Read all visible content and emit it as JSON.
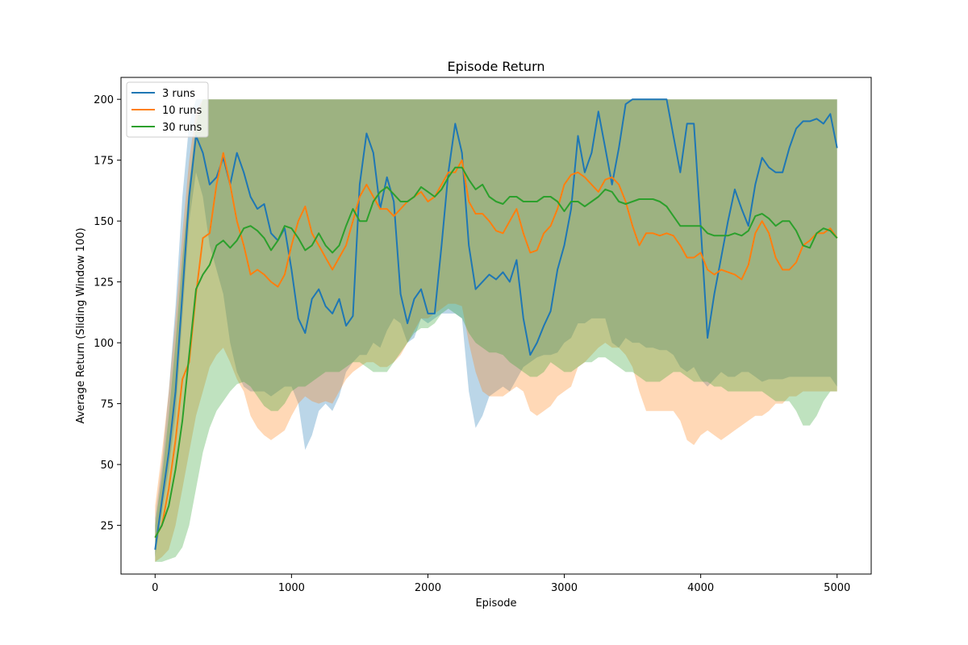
{
  "chart_data": {
    "type": "line",
    "title": "Episode Return",
    "xlabel": "Episode",
    "ylabel": "Average Return (Sliding Window 100)",
    "xlim": [
      -250,
      5250
    ],
    "ylim": [
      5,
      209
    ],
    "xticks": [
      0,
      1000,
      2000,
      3000,
      4000,
      5000
    ],
    "yticks": [
      25,
      50,
      75,
      100,
      125,
      150,
      175,
      200
    ],
    "legend_position": "top-left",
    "grid": false,
    "series": [
      {
        "name": "3 runs",
        "color": "#1f77b4",
        "x": [
          0,
          50,
          100,
          150,
          200,
          250,
          300,
          350,
          400,
          450,
          500,
          550,
          600,
          650,
          700,
          750,
          800,
          850,
          900,
          950,
          1000,
          1050,
          1100,
          1150,
          1200,
          1250,
          1300,
          1350,
          1400,
          1450,
          1500,
          1550,
          1600,
          1650,
          1700,
          1750,
          1800,
          1850,
          1900,
          1950,
          2000,
          2050,
          2100,
          2150,
          2200,
          2250,
          2300,
          2350,
          2400,
          2450,
          2500,
          2550,
          2600,
          2650,
          2700,
          2750,
          2800,
          2850,
          2900,
          2950,
          3000,
          3050,
          3100,
          3150,
          3200,
          3250,
          3300,
          3350,
          3400,
          3450,
          3500,
          3550,
          3600,
          3650,
          3700,
          3750,
          3800,
          3850,
          3900,
          3950,
          4000,
          4050,
          4100,
          4150,
          4200,
          4250,
          4300,
          4350,
          4400,
          4450,
          4500,
          4550,
          4600,
          4650,
          4700,
          4750,
          4800,
          4850,
          4900,
          4950,
          5000
        ],
        "y": [
          15,
          35,
          55,
          80,
          120,
          160,
          185,
          178,
          165,
          168,
          176,
          165,
          178,
          170,
          160,
          155,
          157,
          145,
          142,
          147,
          130,
          110,
          104,
          118,
          122,
          115,
          112,
          118,
          107,
          111,
          165,
          186,
          178,
          155,
          168,
          158,
          120,
          108,
          118,
          122,
          112,
          112,
          140,
          170,
          190,
          178,
          140,
          122,
          125,
          128,
          126,
          129,
          125,
          134,
          110,
          95,
          100,
          107,
          113,
          130,
          140,
          155,
          185,
          170,
          178,
          195,
          180,
          165,
          180,
          198,
          200,
          200,
          200,
          200,
          200,
          200,
          185,
          170,
          190,
          190,
          148,
          102,
          120,
          135,
          150,
          163,
          155,
          148,
          165,
          176,
          172,
          170,
          170,
          180,
          188,
          191,
          191,
          192,
          190,
          194,
          180
        ],
        "lower": [
          12,
          30,
          48,
          70,
          110,
          150,
          170,
          160,
          140,
          130,
          120,
          100,
          88,
          82,
          80,
          80,
          80,
          78,
          80,
          82,
          82,
          75,
          56,
          62,
          72,
          75,
          72,
          78,
          88,
          92,
          95,
          95,
          100,
          98,
          105,
          110,
          108,
          100,
          102,
          110,
          108,
          110,
          112,
          112,
          112,
          110,
          80,
          65,
          70,
          78,
          80,
          82,
          80,
          85,
          90,
          92,
          94,
          95,
          95,
          96,
          100,
          102,
          108,
          108,
          110,
          110,
          110,
          100,
          98,
          102,
          100,
          100,
          98,
          98,
          97,
          97,
          95,
          90,
          88,
          90,
          85,
          82,
          85,
          88,
          86,
          86,
          88,
          88,
          86,
          84,
          85,
          85,
          85,
          86,
          86,
          86,
          86,
          86,
          86,
          86,
          82
        ],
        "upper": [
          28,
          50,
          80,
          115,
          160,
          190,
          200,
          200,
          200,
          200,
          200,
          200,
          200,
          200,
          200,
          200,
          200,
          200,
          200,
          200,
          200,
          200,
          200,
          200,
          200,
          200,
          200,
          200,
          200,
          200,
          200,
          200,
          200,
          200,
          200,
          200,
          200,
          200,
          200,
          200,
          200,
          200,
          200,
          200,
          200,
          200,
          200,
          200,
          200,
          200,
          200,
          200,
          200,
          200,
          200,
          200,
          200,
          200,
          200,
          200,
          200,
          200,
          200,
          200,
          200,
          200,
          200,
          200,
          200,
          200,
          200,
          200,
          200,
          200,
          200,
          200,
          200,
          200,
          200,
          200,
          200,
          200,
          200,
          200,
          200,
          200,
          200,
          200,
          200,
          200,
          200,
          200,
          200,
          200,
          200,
          200,
          200,
          200,
          200,
          200,
          200
        ]
      },
      {
        "name": "10 runs",
        "color": "#ff7f0e",
        "x": [
          0,
          50,
          100,
          150,
          200,
          250,
          300,
          350,
          400,
          450,
          500,
          550,
          600,
          650,
          700,
          750,
          800,
          850,
          900,
          950,
          1000,
          1050,
          1100,
          1150,
          1200,
          1250,
          1300,
          1350,
          1400,
          1450,
          1500,
          1550,
          1600,
          1650,
          1700,
          1750,
          1800,
          1850,
          1900,
          1950,
          2000,
          2050,
          2100,
          2150,
          2200,
          2250,
          2300,
          2350,
          2400,
          2450,
          2500,
          2550,
          2600,
          2650,
          2700,
          2750,
          2800,
          2850,
          2900,
          2950,
          3000,
          3050,
          3100,
          3150,
          3200,
          3250,
          3300,
          3350,
          3400,
          3450,
          3500,
          3550,
          3600,
          3650,
          3700,
          3750,
          3800,
          3850,
          3900,
          3950,
          4000,
          4050,
          4100,
          4150,
          4200,
          4250,
          4300,
          4350,
          4400,
          4450,
          4500,
          4550,
          4600,
          4650,
          4700,
          4750,
          4800,
          4850,
          4900,
          4950,
          5000
        ],
        "y": [
          20,
          25,
          40,
          60,
          85,
          92,
          120,
          143,
          145,
          165,
          178,
          165,
          150,
          140,
          128,
          130,
          128,
          125,
          123,
          128,
          140,
          150,
          156,
          145,
          140,
          135,
          130,
          135,
          140,
          150,
          160,
          165,
          160,
          155,
          155,
          152,
          155,
          158,
          160,
          162,
          158,
          160,
          165,
          170,
          170,
          175,
          158,
          153,
          153,
          150,
          146,
          145,
          150,
          155,
          145,
          137,
          138,
          145,
          148,
          155,
          165,
          169,
          170,
          168,
          165,
          162,
          167,
          168,
          165,
          158,
          148,
          140,
          145,
          145,
          144,
          145,
          144,
          140,
          135,
          135,
          137,
          130,
          128,
          130,
          129,
          128,
          126,
          132,
          145,
          150,
          145,
          135,
          130,
          130,
          133,
          140,
          142,
          145,
          145,
          147,
          143
        ],
        "lower": [
          10,
          12,
          15,
          25,
          40,
          55,
          70,
          80,
          90,
          95,
          98,
          92,
          85,
          80,
          70,
          65,
          62,
          60,
          62,
          64,
          70,
          75,
          78,
          76,
          75,
          76,
          75,
          80,
          85,
          88,
          90,
          92,
          92,
          90,
          90,
          92,
          95,
          100,
          105,
          110,
          110,
          112,
          114,
          116,
          116,
          115,
          100,
          88,
          80,
          78,
          78,
          78,
          80,
          82,
          80,
          72,
          70,
          72,
          74,
          78,
          80,
          82,
          90,
          92,
          95,
          98,
          100,
          98,
          98,
          95,
          90,
          80,
          72,
          72,
          72,
          72,
          72,
          68,
          60,
          58,
          62,
          64,
          62,
          60,
          62,
          64,
          66,
          68,
          70,
          70,
          72,
          75,
          75,
          78,
          78,
          80,
          80,
          80,
          80,
          80,
          80
        ],
        "upper": [
          33,
          55,
          80,
          110,
          145,
          175,
          195,
          200,
          200,
          200,
          200,
          200,
          200,
          200,
          200,
          200,
          200,
          200,
          200,
          200,
          200,
          200,
          200,
          200,
          200,
          200,
          200,
          200,
          200,
          200,
          200,
          200,
          200,
          200,
          200,
          200,
          200,
          200,
          200,
          200,
          200,
          200,
          200,
          200,
          200,
          200,
          200,
          200,
          200,
          200,
          200,
          200,
          200,
          200,
          200,
          200,
          200,
          200,
          200,
          200,
          200,
          200,
          200,
          200,
          200,
          200,
          200,
          200,
          200,
          200,
          200,
          200,
          200,
          200,
          200,
          200,
          200,
          200,
          200,
          200,
          200,
          200,
          200,
          200,
          200,
          200,
          200,
          200,
          200,
          200,
          200,
          200,
          200,
          200,
          200,
          200,
          200,
          200,
          200,
          200,
          200
        ]
      },
      {
        "name": "30 runs",
        "color": "#2ca02c",
        "x": [
          0,
          50,
          100,
          150,
          200,
          250,
          300,
          350,
          400,
          450,
          500,
          550,
          600,
          650,
          700,
          750,
          800,
          850,
          900,
          950,
          1000,
          1050,
          1100,
          1150,
          1200,
          1250,
          1300,
          1350,
          1400,
          1450,
          1500,
          1550,
          1600,
          1650,
          1700,
          1750,
          1800,
          1850,
          1900,
          1950,
          2000,
          2050,
          2100,
          2150,
          2200,
          2250,
          2300,
          2350,
          2400,
          2450,
          2500,
          2550,
          2600,
          2650,
          2700,
          2750,
          2800,
          2850,
          2900,
          2950,
          3000,
          3050,
          3100,
          3150,
          3200,
          3250,
          3300,
          3350,
          3400,
          3450,
          3500,
          3550,
          3600,
          3650,
          3700,
          3750,
          3800,
          3850,
          3900,
          3950,
          4000,
          4050,
          4100,
          4150,
          4200,
          4250,
          4300,
          4350,
          4400,
          4450,
          4500,
          4550,
          4600,
          4650,
          4700,
          4750,
          4800,
          4850,
          4900,
          4950,
          5000
        ],
        "y": [
          20,
          25,
          33,
          48,
          68,
          95,
          122,
          128,
          132,
          140,
          142,
          139,
          142,
          147,
          148,
          146,
          143,
          138,
          142,
          148,
          147,
          143,
          138,
          140,
          145,
          140,
          137,
          140,
          148,
          155,
          150,
          150,
          158,
          162,
          164,
          161,
          158,
          158,
          160,
          164,
          162,
          160,
          163,
          168,
          172,
          172,
          167,
          163,
          165,
          160,
          158,
          157,
          160,
          160,
          158,
          158,
          158,
          160,
          160,
          158,
          154,
          158,
          158,
          156,
          158,
          160,
          163,
          162,
          158,
          157,
          158,
          159,
          159,
          159,
          158,
          156,
          152,
          148,
          148,
          148,
          148,
          145,
          144,
          144,
          144,
          145,
          144,
          146,
          152,
          153,
          151,
          148,
          150,
          150,
          146,
          140,
          139,
          145,
          147,
          146,
          143
        ],
        "lower": [
          10,
          10,
          11,
          12,
          16,
          25,
          40,
          55,
          65,
          72,
          76,
          80,
          83,
          84,
          82,
          78,
          74,
          72,
          72,
          75,
          80,
          82,
          82,
          84,
          86,
          88,
          88,
          88,
          90,
          92,
          92,
          90,
          88,
          88,
          88,
          92,
          96,
          100,
          104,
          106,
          106,
          108,
          112,
          114,
          112,
          110,
          104,
          100,
          98,
          96,
          96,
          95,
          92,
          90,
          88,
          86,
          86,
          88,
          92,
          90,
          88,
          88,
          90,
          92,
          92,
          94,
          94,
          92,
          90,
          88,
          88,
          86,
          84,
          84,
          84,
          86,
          88,
          88,
          86,
          84,
          84,
          84,
          82,
          82,
          80,
          80,
          80,
          80,
          80,
          80,
          78,
          76,
          76,
          76,
          72,
          66,
          66,
          70,
          76,
          80,
          80
        ],
        "upper": [
          25,
          45,
          70,
          100,
          135,
          165,
          190,
          200,
          200,
          200,
          200,
          200,
          200,
          200,
          200,
          200,
          200,
          200,
          200,
          200,
          200,
          200,
          200,
          200,
          200,
          200,
          200,
          200,
          200,
          200,
          200,
          200,
          200,
          200,
          200,
          200,
          200,
          200,
          200,
          200,
          200,
          200,
          200,
          200,
          200,
          200,
          200,
          200,
          200,
          200,
          200,
          200,
          200,
          200,
          200,
          200,
          200,
          200,
          200,
          200,
          200,
          200,
          200,
          200,
          200,
          200,
          200,
          200,
          200,
          200,
          200,
          200,
          200,
          200,
          200,
          200,
          200,
          200,
          200,
          200,
          200,
          200,
          200,
          200,
          200,
          200,
          200,
          200,
          200,
          200,
          200,
          200,
          200,
          200,
          200,
          200,
          200,
          200,
          200,
          200,
          200
        ]
      }
    ]
  }
}
